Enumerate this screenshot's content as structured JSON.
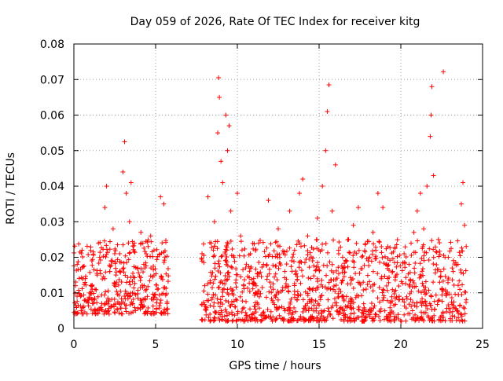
{
  "chart_data": {
    "type": "scatter",
    "title": "Day 059 of 2026, Rate Of TEC Index for receiver kitg",
    "xlabel": "GPS time / hours",
    "ylabel": "ROTI / TECUs",
    "xlim": [
      0,
      25
    ],
    "ylim": [
      0,
      0.08
    ],
    "xticks": [
      0,
      5,
      10,
      15,
      20,
      25
    ],
    "xtick_labels": [
      "0",
      "5",
      "10",
      "15",
      "20",
      "25"
    ],
    "yticks": [
      0,
      0.01,
      0.02,
      0.03,
      0.04,
      0.05,
      0.06,
      0.07,
      0.08
    ],
    "ytick_labels": [
      "0",
      "0.01",
      "0.02",
      "0.03",
      "0.04",
      "0.05",
      "0.06",
      "0.07",
      "0.08"
    ],
    "grid": true,
    "marker": "+",
    "color": "#ff0000",
    "series": [
      {
        "name": "ROTI",
        "segments": [
          {
            "t_start": 0.0,
            "t_end": 5.8,
            "typical_range": [
              0.004,
              0.025
            ]
          },
          {
            "t_start": 7.8,
            "t_end": 24.0,
            "typical_range": [
              0.002,
              0.025
            ]
          }
        ],
        "points": [
          [
            0.1,
            0.012
          ],
          [
            0.2,
            0.018
          ],
          [
            0.4,
            0.009
          ],
          [
            0.5,
            0.022
          ],
          [
            0.7,
            0.014
          ],
          [
            0.9,
            0.008
          ],
          [
            1.1,
            0.019
          ],
          [
            1.3,
            0.011
          ],
          [
            1.5,
            0.024
          ],
          [
            1.7,
            0.007
          ],
          [
            1.9,
            0.034
          ],
          [
            2.0,
            0.04
          ],
          [
            2.2,
            0.016
          ],
          [
            2.4,
            0.028
          ],
          [
            2.6,
            0.013
          ],
          [
            2.8,
            0.021
          ],
          [
            3.0,
            0.044
          ],
          [
            3.1,
            0.0525
          ],
          [
            3.2,
            0.038
          ],
          [
            3.4,
            0.03
          ],
          [
            3.5,
            0.041
          ],
          [
            3.7,
            0.024
          ],
          [
            3.9,
            0.017
          ],
          [
            4.1,
            0.027
          ],
          [
            4.3,
            0.012
          ],
          [
            4.5,
            0.009
          ],
          [
            4.7,
            0.026
          ],
          [
            4.9,
            0.015
          ],
          [
            5.1,
            0.011
          ],
          [
            5.3,
            0.037
          ],
          [
            5.5,
            0.035
          ],
          [
            5.7,
            0.007
          ],
          [
            8.0,
            0.012
          ],
          [
            8.2,
            0.037
          ],
          [
            8.4,
            0.024
          ],
          [
            8.6,
            0.03
          ],
          [
            8.8,
            0.055
          ],
          [
            8.85,
            0.0705
          ],
          [
            8.9,
            0.065
          ],
          [
            9.0,
            0.047
          ],
          [
            9.1,
            0.041
          ],
          [
            9.3,
            0.06
          ],
          [
            9.4,
            0.05
          ],
          [
            9.5,
            0.057
          ],
          [
            9.6,
            0.033
          ],
          [
            9.8,
            0.02
          ],
          [
            10.0,
            0.038
          ],
          [
            10.2,
            0.026
          ],
          [
            10.5,
            0.017
          ],
          [
            10.8,
            0.021
          ],
          [
            11.0,
            0.014
          ],
          [
            11.3,
            0.024
          ],
          [
            11.6,
            0.018
          ],
          [
            11.9,
            0.036
          ],
          [
            12.2,
            0.011
          ],
          [
            12.5,
            0.028
          ],
          [
            12.9,
            0.016
          ],
          [
            13.2,
            0.033
          ],
          [
            13.5,
            0.022
          ],
          [
            13.8,
            0.038
          ],
          [
            14.0,
            0.042
          ],
          [
            14.3,
            0.026
          ],
          [
            14.6,
            0.019
          ],
          [
            14.9,
            0.031
          ],
          [
            15.2,
            0.04
          ],
          [
            15.4,
            0.05
          ],
          [
            15.5,
            0.061
          ],
          [
            15.6,
            0.0685
          ],
          [
            15.8,
            0.033
          ],
          [
            16.0,
            0.046
          ],
          [
            16.2,
            0.021
          ],
          [
            16.5,
            0.017
          ],
          [
            16.8,
            0.025
          ],
          [
            17.1,
            0.029
          ],
          [
            17.4,
            0.034
          ],
          [
            17.7,
            0.013
          ],
          [
            18.0,
            0.019
          ],
          [
            18.3,
            0.027
          ],
          [
            18.6,
            0.038
          ],
          [
            18.9,
            0.034
          ],
          [
            19.2,
            0.023
          ],
          [
            19.5,
            0.016
          ],
          [
            19.9,
            0.009
          ],
          [
            20.2,
            0.021
          ],
          [
            20.5,
            0.018
          ],
          [
            20.8,
            0.027
          ],
          [
            21.0,
            0.033
          ],
          [
            21.2,
            0.038
          ],
          [
            21.4,
            0.028
          ],
          [
            21.6,
            0.04
          ],
          [
            21.8,
            0.054
          ],
          [
            21.85,
            0.06
          ],
          [
            21.9,
            0.068
          ],
          [
            22.0,
            0.043
          ],
          [
            22.3,
            0.025
          ],
          [
            22.6,
            0.0722
          ],
          [
            22.9,
            0.02
          ],
          [
            23.2,
            0.016
          ],
          [
            23.5,
            0.018
          ],
          [
            23.7,
            0.035
          ],
          [
            23.8,
            0.041
          ],
          [
            23.9,
            0.029
          ]
        ]
      }
    ]
  }
}
